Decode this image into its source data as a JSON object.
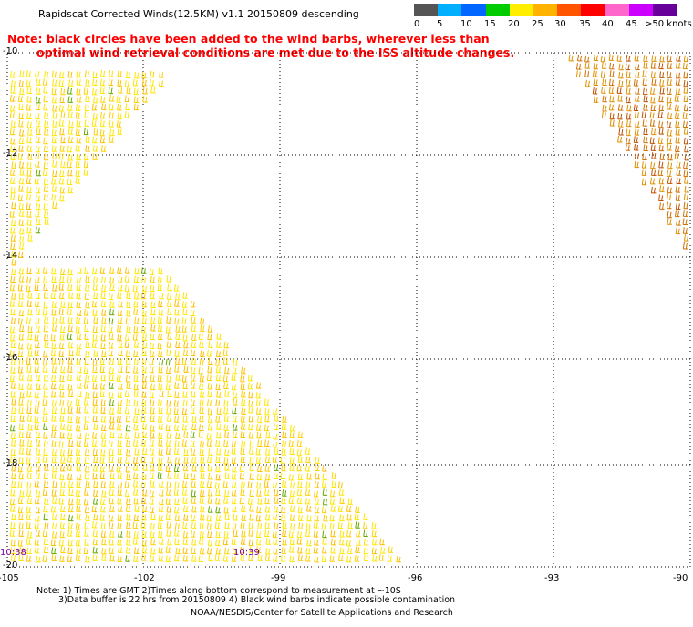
{
  "title": "Rapidscat Corrected Winds(12.5KM) v1.1 20150809 descending",
  "note_line1": "Note: black circles have been added to the wind barbs, wherever less than",
  "note_line2": "optimal wind retrieval conditions are met due to the ISS altitude changes.",
  "color_scale": {
    "labels": [
      "0",
      "5",
      "10",
      "15",
      "20",
      "25",
      "30",
      "35",
      "40",
      "45",
      ">50 knots"
    ],
    "colors": [
      "#555555",
      "#00b0ff",
      "#0066ff",
      "#00cc00",
      "#ffee00",
      "#ffb300",
      "#ff5500",
      "#ff0000",
      "#ff66cc",
      "#cc00ff",
      "#660099"
    ]
  },
  "axes": {
    "lat_labels": [
      "-10",
      "-12",
      "-14",
      "-16",
      "-18",
      "-20"
    ],
    "lon_labels": [
      "-105",
      "-102",
      "-99",
      "-96",
      "-93",
      "-90"
    ]
  },
  "time_labels": [
    "10:38",
    "10:39"
  ],
  "footnote_line1": "Note: 1) Times are GMT 2)Times along bottom correspond to measurement at ~10S",
  "footnote_line2": "3)Data buffer is 22 hrs from 20150809 4) Black wind barbs indicate possible contamination",
  "credit": "NOAA/NESDIS/Center for Satellite Applications and Research"
}
